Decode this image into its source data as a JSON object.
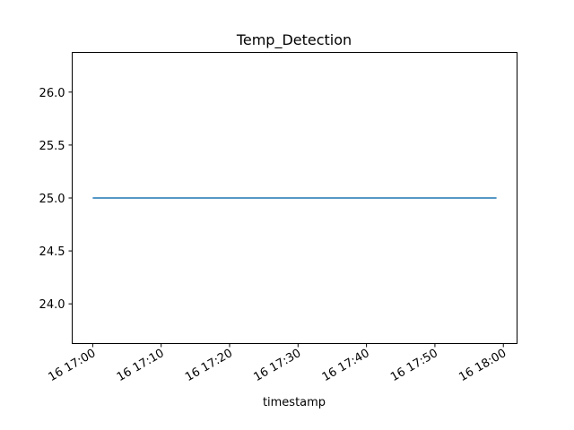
{
  "chart_data": {
    "type": "line",
    "title": "Temp_Detection",
    "xlabel": "timestamp",
    "ylabel": "",
    "x": [
      "16 17:00",
      "16 18:00"
    ],
    "x_minutes": [
      0,
      59
    ],
    "xlim_minutes": [
      -3,
      62
    ],
    "xticks": [
      {
        "minute": 0,
        "label": "16 17:00"
      },
      {
        "minute": 10,
        "label": "16 17:10"
      },
      {
        "minute": 20,
        "label": "16 17:20"
      },
      {
        "minute": 30,
        "label": "16 17:30"
      },
      {
        "minute": 40,
        "label": "16 17:40"
      },
      {
        "minute": 50,
        "label": "16 17:50"
      },
      {
        "minute": 60,
        "label": "16 18:00"
      }
    ],
    "series": [
      {
        "values": [
          25.0,
          25.0
        ],
        "color": "#1f77b4"
      }
    ],
    "ylim": [
      23.625,
      26.375
    ],
    "yticks": [
      "24.0",
      "24.5",
      "25.0",
      "25.5",
      "26.0"
    ],
    "grid": false,
    "legend": "none"
  }
}
